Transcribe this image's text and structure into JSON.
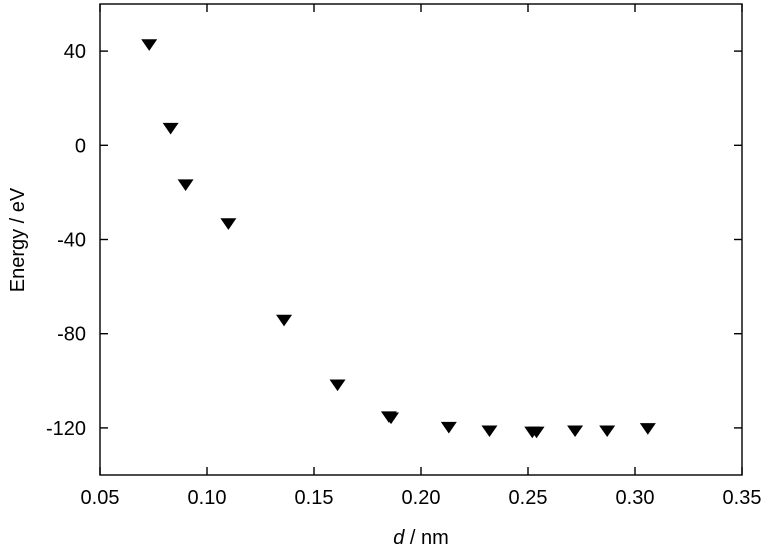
{
  "chart_data": {
    "type": "scatter",
    "xlabel_var": "d",
    "xlabel_unit": " / nm",
    "ylabel": "Energy / eV",
    "xlim": [
      0.05,
      0.35
    ],
    "ylim": [
      -140,
      60
    ],
    "xticks": [
      0.05,
      0.1,
      0.15,
      0.2,
      0.25,
      0.3,
      0.35
    ],
    "xtick_labels": [
      "0.05",
      "0.10",
      "0.15",
      "0.20",
      "0.25",
      "0.30",
      "0.35"
    ],
    "yticks": [
      40,
      0,
      -40,
      -80,
      -120
    ],
    "ytick_labels": [
      "40",
      "0",
      "-40",
      "-80",
      "-120"
    ],
    "grid": false,
    "marker": "triangle-down",
    "color": "#000000",
    "series": [
      {
        "x": [
          0.073,
          0.083,
          0.09,
          0.11,
          0.136,
          0.161,
          0.185,
          0.186,
          0.213,
          0.232,
          0.252,
          0.254,
          0.272,
          0.287,
          0.306
        ],
        "y": [
          43,
          7.5,
          -16.5,
          -33,
          -74,
          -101.5,
          -115,
          -115.5,
          -119.5,
          -121,
          -121.5,
          -121.5,
          -121,
          -121,
          -120
        ]
      }
    ]
  }
}
